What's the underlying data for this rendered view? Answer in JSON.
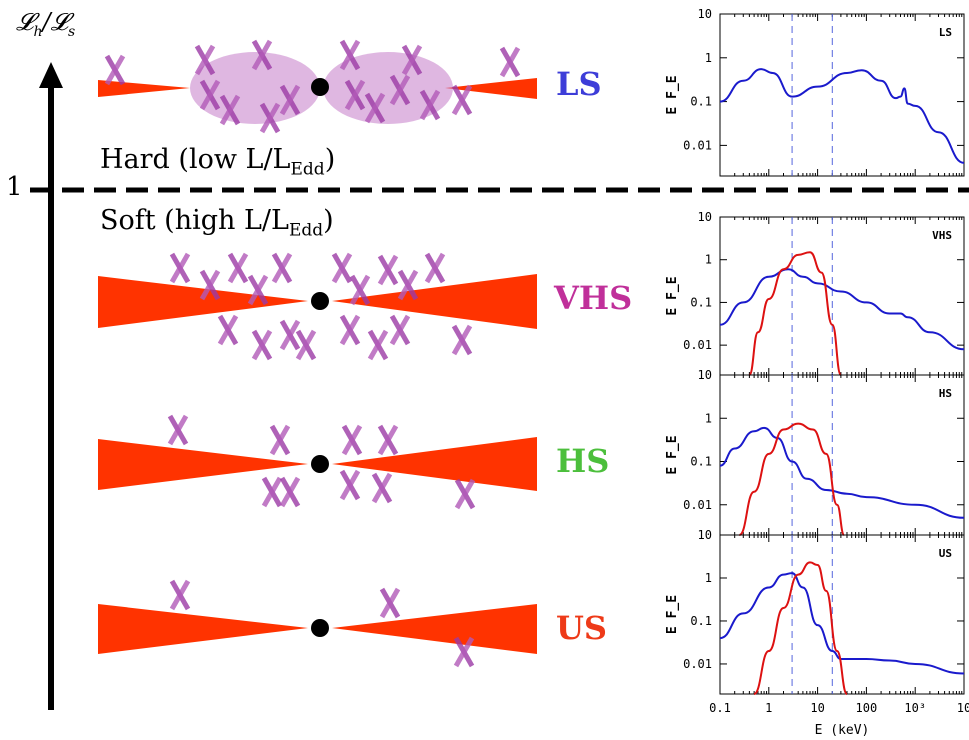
{
  "axis_title": {
    "main": "𝓛",
    "sub_h": "h",
    "slash": "/",
    "main2": "𝓛",
    "sub_s": "s"
  },
  "one_label": "1",
  "hard": {
    "prefix": "Hard (low L/L",
    "sub": "Edd",
    "suffix": ")"
  },
  "soft": {
    "prefix": "Soft (high L/L",
    "sub": "Edd",
    "suffix": ")"
  },
  "states": [
    {
      "label": "LS",
      "color": "#3d3dd8"
    },
    {
      "label": "VHS",
      "color": "#c0309a"
    },
    {
      "label": "HS",
      "color": "#4cbf3c"
    },
    {
      "label": "US",
      "color": "#ee3a18"
    }
  ],
  "colors": {
    "disk": "#ff3300",
    "corona": "#9b3aa5",
    "blue_curve": "#1a1acc",
    "red_curve": "#dd1111",
    "dash": "#5566dd"
  },
  "panels": {
    "ylabel": "E F_E",
    "y_ticks": [
      "10",
      "1",
      "0.1",
      "0.01"
    ],
    "x_ticks": [
      "0.1",
      "1",
      "10",
      "100",
      "10³",
      "10"
    ],
    "xlabel": "E (keV)",
    "names": [
      "LS",
      "VHS",
      "HS",
      "US"
    ]
  },
  "chart_data": [
    {
      "type": "line",
      "title": "LS",
      "xlabel": "",
      "ylabel": "E F_E",
      "xscale": "log",
      "yscale": "log",
      "xlim": [
        0.1,
        10000
      ],
      "ylim": [
        0.002,
        10
      ],
      "vlines": [
        3,
        20
      ],
      "series": [
        {
          "color": "#1a1acc",
          "x": [
            0.1,
            0.3,
            0.7,
            1.2,
            3,
            10,
            40,
            80,
            200,
            400,
            500,
            600,
            700,
            1000,
            3000,
            10000
          ],
          "y": [
            0.1,
            0.3,
            0.55,
            0.45,
            0.13,
            0.22,
            0.45,
            0.52,
            0.3,
            0.12,
            0.13,
            0.2,
            0.09,
            0.08,
            0.02,
            0.004
          ]
        }
      ]
    },
    {
      "type": "line",
      "title": "VHS",
      "xlabel": "",
      "ylabel": "E F_E",
      "xscale": "log",
      "yscale": "log",
      "xlim": [
        0.1,
        10000
      ],
      "ylim": [
        0.002,
        10
      ],
      "vlines": [
        3,
        20
      ],
      "series": [
        {
          "color": "#1a1acc",
          "x": [
            0.1,
            0.3,
            1,
            2.5,
            5,
            10,
            30,
            100,
            300,
            500,
            700,
            2000,
            10000
          ],
          "y": [
            0.03,
            0.1,
            0.4,
            0.6,
            0.4,
            0.28,
            0.18,
            0.1,
            0.055,
            0.055,
            0.045,
            0.02,
            0.008
          ]
        },
        {
          "color": "#dd1111",
          "x": [
            0.4,
            0.6,
            1,
            2,
            4,
            7,
            12,
            20,
            30
          ],
          "y": [
            0.002,
            0.02,
            0.12,
            0.6,
            1.3,
            1.5,
            0.5,
            0.03,
            0.002
          ]
        }
      ]
    },
    {
      "type": "line",
      "title": "HS",
      "xlabel": "",
      "ylabel": "E F_E",
      "xscale": "log",
      "yscale": "log",
      "xlim": [
        0.1,
        10000
      ],
      "ylim": [
        0.002,
        10
      ],
      "vlines": [
        3,
        20
      ],
      "series": [
        {
          "color": "#1a1acc",
          "x": [
            0.1,
            0.2,
            0.5,
            0.8,
            1.5,
            3,
            6,
            15,
            40,
            100,
            1000,
            10000
          ],
          "y": [
            0.08,
            0.2,
            0.5,
            0.6,
            0.35,
            0.1,
            0.04,
            0.022,
            0.018,
            0.015,
            0.01,
            0.005
          ]
        },
        {
          "color": "#dd1111",
          "x": [
            0.25,
            0.5,
            1,
            2,
            4,
            8,
            15,
            25,
            35
          ],
          "y": [
            0.002,
            0.02,
            0.15,
            0.55,
            0.75,
            0.55,
            0.15,
            0.01,
            0.002
          ]
        }
      ]
    },
    {
      "type": "line",
      "title": "US",
      "xlabel": "E (keV)",
      "ylabel": "E F_E",
      "xscale": "log",
      "yscale": "log",
      "xlim": [
        0.1,
        10000
      ],
      "ylim": [
        0.002,
        10
      ],
      "vlines": [
        3,
        20
      ],
      "series": [
        {
          "color": "#1a1acc",
          "x": [
            0.1,
            0.3,
            1,
            2,
            3,
            5,
            10,
            20,
            30,
            100,
            300,
            1000,
            10000
          ],
          "y": [
            0.04,
            0.15,
            0.6,
            1.2,
            1.3,
            0.6,
            0.08,
            0.02,
            0.013,
            0.013,
            0.012,
            0.01,
            0.006
          ]
        },
        {
          "color": "#dd1111",
          "x": [
            0.5,
            1,
            2,
            4,
            7,
            10,
            15,
            25,
            40
          ],
          "y": [
            0.002,
            0.02,
            0.2,
            1.2,
            2.3,
            2.0,
            0.5,
            0.02,
            0.002
          ]
        }
      ]
    }
  ]
}
